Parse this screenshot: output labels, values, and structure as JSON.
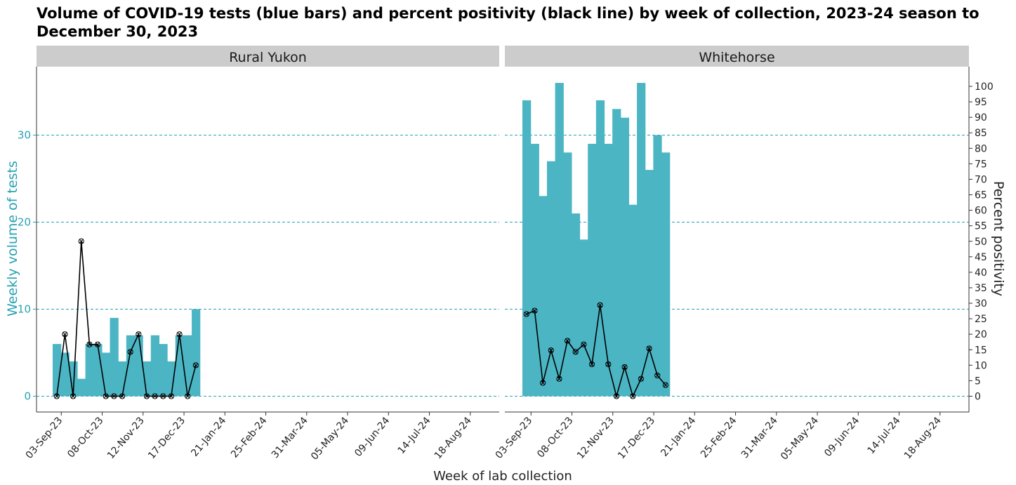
{
  "title": "Volume of COVID-19 tests (blue bars) and percent positivity (black line) by week of collection, 2023-24 season to December 30, 2023",
  "colors": {
    "bar": "#4bb5c4",
    "line": "#000000",
    "grid": "#2aa1b3",
    "strip": "#cccccc",
    "left_axis_text": "#2aa1b3"
  },
  "chart_data": {
    "type": "bar",
    "title": "Volume of COVID-19 tests (blue bars) and percent positivity (black line) by week of collection, 2023-24 season to December 30, 2023",
    "xlabel": "Week of lab collection",
    "ylabel": "Weekly volume of tests",
    "y2label": "Percent positivity",
    "ylim": [
      0,
      36
    ],
    "y2lim": [
      0,
      100
    ],
    "yticks": [
      "0",
      "10",
      "20",
      "30"
    ],
    "y2ticks": [
      "0",
      "5",
      "10",
      "15",
      "20",
      "25",
      "30",
      "35",
      "40",
      "45",
      "50",
      "55",
      "60",
      "65",
      "70",
      "75",
      "80",
      "85",
      "90",
      "95",
      "100"
    ],
    "xticks": [
      "03-Sep-23",
      "08-Oct-23",
      "12-Nov-23",
      "17-Dec-23",
      "21-Jan-24",
      "25-Feb-24",
      "31-Mar-24",
      "05-May-24",
      "09-Jun-24",
      "14-Jul-24",
      "18-Aug-24"
    ],
    "weeks": [
      "27-Aug-23",
      "03-Sep-23",
      "10-Sep-23",
      "17-Sep-23",
      "24-Sep-23",
      "01-Oct-23",
      "08-Oct-23",
      "15-Oct-23",
      "22-Oct-23",
      "29-Oct-23",
      "05-Nov-23",
      "12-Nov-23",
      "19-Nov-23",
      "26-Nov-23",
      "03-Dec-23",
      "10-Dec-23",
      "17-Dec-23",
      "24-Dec-23"
    ],
    "grid": true,
    "panels": [
      {
        "name": "Rural Yukon",
        "volume": [
          6,
          5,
          4,
          2,
          6,
          6,
          5,
          9,
          4,
          7,
          7,
          4,
          7,
          6,
          4,
          7,
          7,
          10
        ],
        "positivity": [
          0,
          20,
          0,
          50,
          16.7,
          16.7,
          0,
          0,
          0,
          14.3,
          20,
          0,
          0,
          0,
          0,
          20,
          0,
          10
        ]
      },
      {
        "name": "Whitehorse",
        "volume": [
          34,
          29,
          23,
          27,
          36,
          28,
          21,
          18,
          29,
          34,
          29,
          33,
          32,
          22,
          36,
          26,
          30,
          28
        ],
        "positivity": [
          26.5,
          27.6,
          4.3,
          14.8,
          5.6,
          17.9,
          14.3,
          16.7,
          10.3,
          29.4,
          10.3,
          0,
          9.4,
          0,
          5.6,
          15.4,
          6.7,
          3.6
        ]
      }
    ]
  }
}
